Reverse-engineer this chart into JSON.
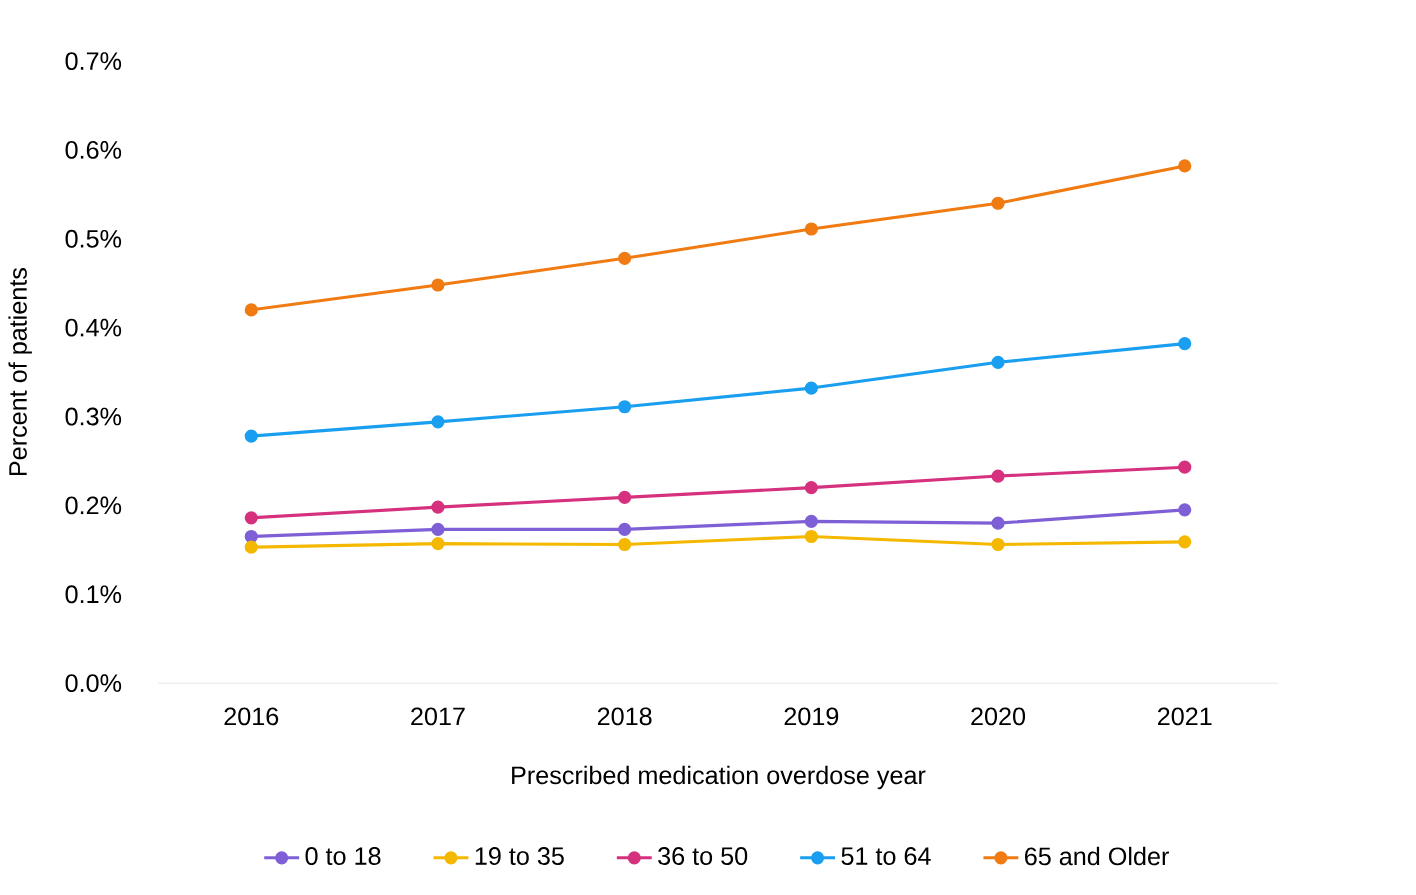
{
  "chart_data": {
    "type": "line",
    "xlabel": "Prescribed medication overdose year",
    "ylabel": "Percent of patients",
    "categories": [
      "2016",
      "2017",
      "2018",
      "2019",
      "2020",
      "2021"
    ],
    "series": [
      {
        "name": "0 to 18",
        "color": "#7e5fd6",
        "values": [
          0.165,
          0.173,
          0.173,
          0.182,
          0.18,
          0.195
        ]
      },
      {
        "name": "19 to 35",
        "color": "#f5b800",
        "values": [
          0.153,
          0.157,
          0.156,
          0.165,
          0.156,
          0.159
        ]
      },
      {
        "name": "36 to 50",
        "color": "#d6317e",
        "values": [
          0.186,
          0.198,
          0.209,
          0.22,
          0.233,
          0.243
        ]
      },
      {
        "name": "51 to 64",
        "color": "#1a9ff0",
        "values": [
          0.278,
          0.294,
          0.311,
          0.332,
          0.361,
          0.382
        ]
      },
      {
        "name": "65 and Older",
        "color": "#f07b12",
        "values": [
          0.42,
          0.448,
          0.478,
          0.511,
          0.54,
          0.582
        ]
      }
    ],
    "ylim": [
      0,
      0.7
    ],
    "yticks": [
      {
        "value": 0,
        "label": "0.0%"
      },
      {
        "value": 0.1,
        "label": "0.1%"
      },
      {
        "value": 0.2,
        "label": "0.2%"
      },
      {
        "value": 0.3,
        "label": "0.3%"
      },
      {
        "value": 0.4,
        "label": "0.4%"
      },
      {
        "value": 0.5,
        "label": "0.5%"
      },
      {
        "value": 0.6,
        "label": "0.6%"
      },
      {
        "value": 0.7,
        "label": "0.7%"
      }
    ],
    "grid": false,
    "legend": "bottom",
    "marker": "circle",
    "line_style": "solid"
  }
}
